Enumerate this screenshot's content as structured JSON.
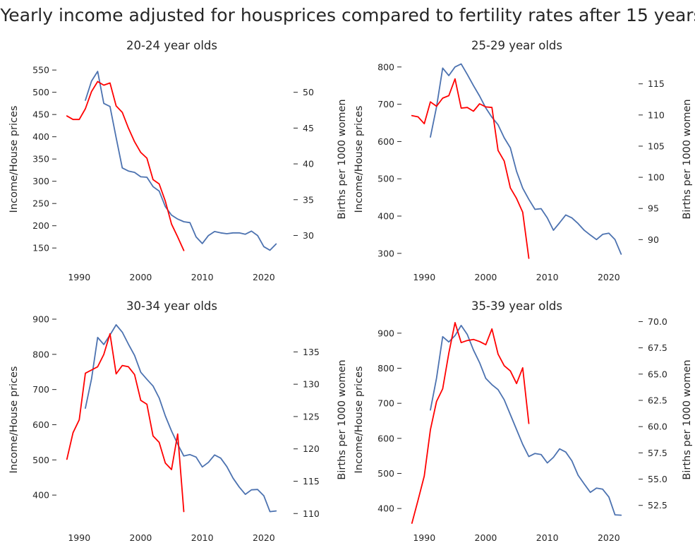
{
  "title": "Yearly income adjusted for housprices compared to fertility rates after 15 years",
  "colors": {
    "income": "#4c72b0",
    "fertility": "#ff0000",
    "text": "#262626"
  },
  "chart_data": [
    {
      "type": "line",
      "title": "20-24 year olds",
      "ylabel": "Income/House prices",
      "y2label": "Births per 1000 women",
      "xlim": [
        1986.3,
        2023.8
      ],
      "ylim": [
        117,
        582
      ],
      "y2lim": [
        26.2,
        55.1
      ],
      "xticks": [
        1990,
        2000,
        2010,
        2020
      ],
      "yticks": [
        150,
        200,
        250,
        300,
        350,
        400,
        450,
        500,
        550
      ],
      "y2ticks": [
        30,
        35,
        40,
        45,
        50
      ],
      "grid": false,
      "series": [
        {
          "axis": "left",
          "color": "#4c72b0",
          "x": [
            1991,
            1992,
            1993,
            1994,
            1995,
            1996,
            1997,
            1998,
            1999,
            2000,
            2001,
            2002,
            2003,
            2004,
            2005,
            2006,
            2007,
            2008,
            2009,
            2010,
            2011,
            2012,
            2013,
            2014,
            2015,
            2016,
            2017,
            2018,
            2019,
            2020,
            2021,
            2022
          ],
          "values": [
            482,
            525,
            547,
            475,
            468,
            398,
            330,
            323,
            320,
            310,
            309,
            288,
            278,
            243,
            224,
            215,
            209,
            207,
            175,
            160,
            178,
            187,
            184,
            182,
            184,
            184,
            181,
            188,
            178,
            153,
            145,
            159
          ]
        },
        {
          "axis": "right",
          "color": "#ff0000",
          "x": [
            1988,
            1989,
            1990,
            1991,
            1992,
            1993,
            1994,
            1995,
            1996,
            1997,
            1998,
            1999,
            2000,
            2001,
            2002,
            2003,
            2004,
            2005,
            2006,
            2007
          ],
          "values": [
            46.7,
            46.2,
            46.2,
            47.7,
            50.1,
            51.5,
            51.0,
            51.3,
            48.1,
            47.2,
            45.0,
            43.1,
            41.6,
            40.8,
            37.8,
            37.2,
            34.8,
            31.6,
            29.8,
            27.9
          ]
        }
      ]
    },
    {
      "type": "line",
      "title": "25-29 year olds",
      "ylabel": "Income/House prices",
      "y2label": "Births per 1000 women",
      "xlim": [
        1986.3,
        2023.8
      ],
      "ylim": [
        275,
        830
      ],
      "y2lim": [
        86.3,
        119.5
      ],
      "xticks": [
        1990,
        2000,
        2010,
        2020
      ],
      "yticks": [
        300,
        400,
        500,
        600,
        700,
        800
      ],
      "y2ticks": [
        90,
        95,
        100,
        105,
        110,
        115
      ],
      "grid": false,
      "series": [
        {
          "axis": "left",
          "color": "#4c72b0",
          "x": [
            1991,
            1992,
            1993,
            1994,
            1995,
            1996,
            1997,
            1998,
            1999,
            2000,
            2001,
            2002,
            2003,
            2004,
            2005,
            2006,
            2007,
            2008,
            2009,
            2010,
            2011,
            2012,
            2013,
            2014,
            2015,
            2016,
            2017,
            2018,
            2019,
            2020,
            2021,
            2022
          ],
          "values": [
            612,
            693,
            797,
            777,
            800,
            808,
            780,
            750,
            722,
            690,
            665,
            645,
            610,
            583,
            520,
            475,
            445,
            418,
            420,
            395,
            362,
            382,
            403,
            395,
            380,
            362,
            349,
            337,
            351,
            354,
            337,
            298
          ]
        },
        {
          "axis": "right",
          "color": "#ff0000",
          "x": [
            1988,
            1989,
            1990,
            1991,
            1992,
            1993,
            1994,
            1995,
            1996,
            1997,
            1998,
            1999,
            2000,
            2001,
            2002,
            2003,
            2004,
            2005,
            2006,
            2007
          ],
          "values": [
            109.9,
            109.7,
            108.6,
            112.1,
            111.4,
            112.7,
            113.1,
            115.8,
            111.1,
            111.2,
            110.6,
            111.8,
            111.3,
            111.2,
            104.3,
            102.6,
            98.3,
            96.6,
            94.4,
            87.0
          ]
        }
      ]
    },
    {
      "type": "line",
      "title": "30-34 year olds",
      "ylabel": "Income/House prices",
      "y2label": "Births per 1000 women",
      "xlim": [
        1986.3,
        2023.8
      ],
      "ylim": [
        320,
        908
      ],
      "y2lim": [
        108.5,
        140.5
      ],
      "xticks": [
        1990,
        2000,
        2010,
        2020
      ],
      "yticks": [
        400,
        500,
        600,
        700,
        800,
        900
      ],
      "y2ticks": [
        110,
        115,
        120,
        125,
        130,
        135
      ],
      "grid": false,
      "series": [
        {
          "axis": "left",
          "color": "#4c72b0",
          "x": [
            1991,
            1992,
            1993,
            1994,
            1995,
            1996,
            1997,
            1998,
            1999,
            2000,
            2001,
            2002,
            2003,
            2004,
            2005,
            2006,
            2007,
            2008,
            2009,
            2010,
            2011,
            2012,
            2013,
            2014,
            2015,
            2016,
            2017,
            2018,
            2019,
            2020,
            2021,
            2022
          ],
          "values": [
            647,
            730,
            848,
            828,
            855,
            884,
            863,
            829,
            797,
            749,
            729,
            710,
            676,
            625,
            582,
            545,
            511,
            515,
            508,
            480,
            493,
            514,
            505,
            481,
            448,
            423,
            402,
            415,
            416,
            398,
            353,
            355
          ]
        },
        {
          "axis": "right",
          "color": "#ff0000",
          "x": [
            1988,
            1989,
            1990,
            1991,
            1992,
            1993,
            1994,
            1995,
            1996,
            1997,
            1998,
            1999,
            2000,
            2001,
            2002,
            2003,
            2004,
            2005,
            2006,
            2007
          ],
          "values": [
            118.4,
            122.5,
            124.5,
            131.7,
            132.2,
            132.7,
            134.6,
            137.8,
            131.6,
            132.9,
            132.7,
            131.5,
            127.5,
            126.9,
            122.0,
            121.0,
            117.8,
            116.8,
            122.3,
            110.3
          ]
        }
      ]
    },
    {
      "type": "line",
      "title": "35-39 year olds",
      "ylabel": "Income/House prices",
      "y2label": "Births per 1000 women",
      "xlim": [
        1986.3,
        2023.8
      ],
      "ylim": [
        358,
        948
      ],
      "y2lim": [
        50.8,
        70.5
      ],
      "xticks": [
        1990,
        2000,
        2010,
        2020
      ],
      "yticks": [
        400,
        500,
        600,
        700,
        800,
        900
      ],
      "y2ticks": [
        52.5,
        55.0,
        57.5,
        60.0,
        62.5,
        65.0,
        67.5,
        70.0
      ],
      "y2tick_labels": [
        "52.5",
        "55.0",
        "57.5",
        "60.0",
        "62.5",
        "65.0",
        "67.5",
        "70.0"
      ],
      "grid": false,
      "series": [
        {
          "axis": "left",
          "color": "#4c72b0",
          "x": [
            1991,
            1992,
            1993,
            1994,
            1995,
            1996,
            1997,
            1998,
            1999,
            2000,
            2001,
            2002,
            2003,
            2004,
            2005,
            2006,
            2007,
            2008,
            2009,
            2010,
            2011,
            2012,
            2013,
            2014,
            2015,
            2016,
            2017,
            2018,
            2019,
            2020,
            2021,
            2022
          ],
          "values": [
            681,
            772,
            890,
            875,
            893,
            922,
            896,
            852,
            816,
            771,
            753,
            739,
            710,
            668,
            625,
            583,
            548,
            557,
            554,
            530,
            546,
            570,
            561,
            536,
            495,
            470,
            446,
            458,
            455,
            433,
            382,
            381
          ]
        },
        {
          "axis": "right",
          "color": "#ff0000",
          "x": [
            1988,
            1989,
            1990,
            1991,
            1992,
            1993,
            1994,
            1995,
            1996,
            1997,
            1998,
            1999,
            2000,
            2001,
            2002,
            2003,
            2004,
            2005,
            2006,
            2007
          ],
          "values": [
            50.8,
            53.0,
            55.3,
            59.7,
            62.4,
            63.6,
            67.0,
            69.9,
            68.0,
            68.2,
            68.3,
            68.1,
            67.8,
            69.3,
            66.9,
            65.8,
            65.3,
            64.1,
            65.6,
            60.3
          ]
        }
      ]
    }
  ]
}
